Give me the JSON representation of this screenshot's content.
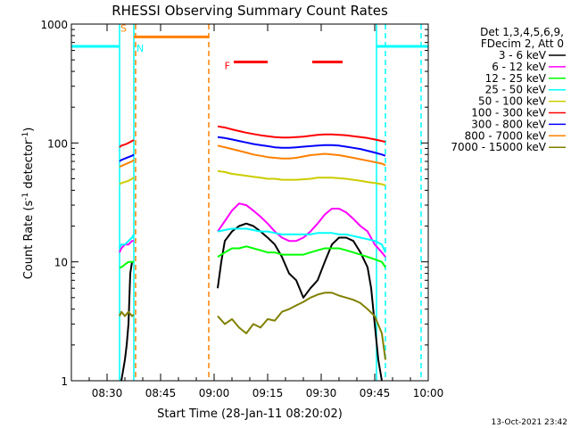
{
  "chart_data": {
    "type": "line",
    "title": "RHESSI Observing Summary Count Rates",
    "xlabel": "Start Time (28-Jan-11 08:20:02)",
    "ylabel_main": "Count Rate (s",
    "ylabel_sup1": "-1",
    "ylabel_mid": " detector",
    "ylabel_sup2": "-1",
    "ylabel_end": ")",
    "x_unit": "minutes since 08:20",
    "xlim": [
      0,
      100
    ],
    "ylim": [
      1,
      1000
    ],
    "y_scale": "log",
    "x_ticks": [
      {
        "value": 10,
        "label": "08:30"
      },
      {
        "value": 25,
        "label": "08:45"
      },
      {
        "value": 40,
        "label": "09:00"
      },
      {
        "value": 55,
        "label": "09:15"
      },
      {
        "value": 70,
        "label": "09:30"
      },
      {
        "value": 85,
        "label": "09:45"
      },
      {
        "value": 100,
        "label": "10:00"
      }
    ],
    "y_ticks": [
      {
        "value": 1,
        "label": "1"
      },
      {
        "value": 10,
        "label": "10"
      },
      {
        "value": 100,
        "label": "100"
      },
      {
        "value": 1000,
        "label": "1000"
      }
    ],
    "legend_header": [
      "Det 1,3,4,5,6,9,",
      "FDecim 2, Att 0"
    ],
    "series": [
      {
        "name": "3 - 6 keV",
        "color": "#000000",
        "segments": [
          {
            "x": [
              14,
              15,
              15.5,
              16,
              16.5,
              17
            ],
            "y": [
              1,
              1.5,
              2,
              3,
              8,
              10
            ]
          },
          {
            "x": [
              41,
              42,
              43,
              45,
              47,
              49,
              51,
              53,
              55,
              57,
              59,
              61,
              63,
              65,
              67,
              69,
              71,
              73,
              75,
              77,
              79,
              81,
              83,
              84,
              85,
              86,
              87
            ],
            "y": [
              6,
              10,
              15,
              18,
              20,
              21,
              20,
              18,
              16,
              14,
              11,
              8,
              7,
              5,
              6,
              7,
              10,
              14,
              16,
              16,
              15,
              12,
              9,
              6,
              3,
              1.5,
              1
            ]
          }
        ]
      },
      {
        "name": "6 - 12 keV",
        "color": "#ff00ff",
        "segments": [
          {
            "x": [
              13.5,
              14,
              15,
              16,
              17,
              17.5
            ],
            "y": [
              12,
              13,
              14,
              14,
              15,
              15
            ]
          },
          {
            "x": [
              41,
              43,
              45,
              47,
              49,
              51,
              53,
              55,
              57,
              59,
              61,
              63,
              65,
              67,
              69,
              71,
              73,
              75,
              77,
              79,
              81,
              83,
              85,
              87,
              88
            ],
            "y": [
              18,
              22,
              27,
              31,
              30,
              27,
              24,
              21,
              18,
              16,
              15,
              15,
              16,
              18,
              21,
              25,
              28,
              28,
              26,
              23,
              20,
              18,
              14,
              12,
              11
            ]
          }
        ]
      },
      {
        "name": "12 - 25 keV",
        "color": "#00ff00",
        "segments": [
          {
            "x": [
              13.5,
              14,
              15,
              16,
              17,
              17.5
            ],
            "y": [
              9,
              9,
              9.5,
              10,
              10,
              10
            ]
          },
          {
            "x": [
              41,
              43,
              45,
              47,
              49,
              51,
              53,
              55,
              57,
              59,
              61,
              63,
              65,
              67,
              69,
              71,
              73,
              75,
              77,
              79,
              81,
              83,
              85,
              87,
              88
            ],
            "y": [
              11,
              12,
              13,
              13,
              13.5,
              13,
              12.5,
              12,
              12,
              11.5,
              11.5,
              11.5,
              11.5,
              12,
              12.5,
              13,
              13,
              13,
              12.5,
              12,
              11.5,
              11,
              10.5,
              10,
              9
            ]
          }
        ]
      },
      {
        "name": "25 - 50 keV",
        "color": "#00ffff",
        "segments": [
          {
            "x": [
              13.5,
              14,
              15,
              16,
              17,
              17.5
            ],
            "y": [
              13,
              14,
              14,
              15,
              16,
              17
            ]
          },
          {
            "x": [
              41,
              43,
              45,
              47,
              49,
              51,
              53,
              55,
              57,
              59,
              61,
              63,
              65,
              67,
              69,
              71,
              73,
              75,
              77,
              79,
              81,
              83,
              85,
              87,
              88
            ],
            "y": [
              18,
              18.5,
              19,
              19,
              19,
              18.5,
              18,
              18,
              17.5,
              17,
              17,
              17,
              17,
              17,
              17.5,
              17.5,
              17.5,
              17,
              17,
              16.5,
              16,
              15.5,
              15,
              14,
              12
            ]
          }
        ]
      },
      {
        "name": "50 - 100 keV",
        "color": "#cccc00",
        "segments": [
          {
            "x": [
              13.5,
              14,
              15,
              16,
              17,
              17.5
            ],
            "y": [
              45,
              46,
              47,
              48,
              50,
              51
            ]
          },
          {
            "x": [
              41,
              43,
              45,
              47,
              49,
              51,
              53,
              55,
              57,
              59,
              61,
              63,
              65,
              67,
              69,
              71,
              73,
              75,
              77,
              79,
              81,
              83,
              85,
              87,
              88
            ],
            "y": [
              58,
              57,
              55,
              54,
              53,
              52,
              51,
              50,
              50,
              49,
              49,
              49,
              49.5,
              50,
              51,
              51,
              51,
              50.5,
              50,
              49,
              48,
              47,
              46,
              45,
              44
            ]
          }
        ]
      },
      {
        "name": "100 - 300 keV",
        "color": "#ff0000",
        "segments": [
          {
            "x": [
              13.5,
              14,
              15,
              16,
              17,
              17.5
            ],
            "y": [
              92,
              95,
              97,
              100,
              104,
              106
            ]
          },
          {
            "x": [
              41,
              43,
              45,
              47,
              49,
              51,
              53,
              55,
              57,
              59,
              61,
              63,
              65,
              67,
              69,
              71,
              73,
              75,
              77,
              79,
              81,
              83,
              85,
              87,
              88
            ],
            "y": [
              138,
              135,
              130,
              126,
              122,
              119,
              116,
              114,
              112,
              111,
              111,
              112,
              113,
              115,
              117,
              118,
              118,
              117,
              116,
              114,
              112,
              110,
              107,
              104,
              102
            ]
          }
        ]
      },
      {
        "name": "300 - 800 keV",
        "color": "#0000ff",
        "segments": [
          {
            "x": [
              13.5,
              14,
              15,
              16,
              17,
              17.5
            ],
            "y": [
              70,
              72,
              74,
              76,
              78,
              80
            ]
          },
          {
            "x": [
              41,
              43,
              45,
              47,
              49,
              51,
              53,
              55,
              57,
              59,
              61,
              63,
              65,
              67,
              69,
              71,
              73,
              75,
              77,
              79,
              81,
              83,
              85,
              87,
              88
            ],
            "y": [
              112,
              110,
              107,
              104,
              101,
              98,
              96,
              94,
              92,
              91,
              91,
              92,
              93,
              94,
              95,
              96,
              96,
              95,
              93,
              91,
              89,
              86,
              83,
              80,
              78
            ]
          }
        ]
      },
      {
        "name": "800 - 7000 keV",
        "color": "#ff8000",
        "segments": [
          {
            "x": [
              13.5,
              14,
              15,
              16,
              17,
              17.5
            ],
            "y": [
              63,
              64,
              66,
              68,
              70,
              72
            ]
          },
          {
            "x": [
              41,
              43,
              45,
              47,
              49,
              51,
              53,
              55,
              57,
              59,
              61,
              63,
              65,
              67,
              69,
              71,
              73,
              75,
              77,
              79,
              81,
              83,
              85,
              87,
              88
            ],
            "y": [
              95,
              92,
              89,
              86,
              83,
              80,
              78,
              76,
              75,
              74,
              74,
              75,
              77,
              79,
              80,
              81,
              80,
              79,
              77,
              75,
              73,
              71,
              69,
              67,
              65
            ]
          }
        ]
      },
      {
        "name": "7000 - 15000 keV",
        "color": "#808000",
        "segments": [
          {
            "x": [
              13.5,
              14,
              15,
              16,
              17,
              17.5
            ],
            "y": [
              3.5,
              3.8,
              3.5,
              3.8,
              3.5,
              3.6
            ]
          },
          {
            "x": [
              41,
              43,
              45,
              47,
              49,
              51,
              53,
              55,
              57,
              59,
              61,
              63,
              65,
              67,
              69,
              71,
              73,
              75,
              77,
              79,
              81,
              83,
              85,
              87,
              88
            ],
            "y": [
              3.5,
              3.0,
              3.3,
              2.8,
              2.5,
              3.0,
              2.8,
              3.3,
              3.2,
              3.8,
              4.0,
              4.3,
              4.6,
              5.0,
              5.3,
              5.5,
              5.5,
              5.2,
              5.0,
              4.8,
              4.5,
              4.0,
              3.5,
              2.5,
              1.5
            ]
          }
        ]
      }
    ],
    "flag_bands": [
      {
        "label": "",
        "color": "#00ffff",
        "x0": 0,
        "x1": 13.5,
        "level": 650
      },
      {
        "label": "N",
        "color": "#00ffff",
        "x0": 17.5,
        "x1": 17.6,
        "level": 650
      },
      {
        "label": "S",
        "color": "#ff8000",
        "x0": 17.5,
        "x1": 38.5,
        "level": 780
      },
      {
        "label": "F",
        "color": "#ff0000",
        "x0": 45.5,
        "x1": 55,
        "level": 480
      },
      {
        "label": "",
        "color": "#ff0000",
        "x0": 67.5,
        "x1": 76,
        "level": 480
      },
      {
        "label": "",
        "color": "#00ffff",
        "x0": 85.5,
        "x1": 100,
        "level": 650
      }
    ],
    "vlines": [
      {
        "x": 13.5,
        "color": "#00ffff",
        "style": "solid"
      },
      {
        "x": 17.5,
        "color": "#00ffff",
        "style": "solid"
      },
      {
        "x": 18,
        "color": "#ff8000",
        "style": "dashed"
      },
      {
        "x": 38.5,
        "color": "#ff8000",
        "style": "dashed"
      },
      {
        "x": 85.5,
        "color": "#00ffff",
        "style": "solid"
      },
      {
        "x": 88,
        "color": "#00ffff",
        "style": "dashed"
      },
      {
        "x": 98,
        "color": "#00ffff",
        "style": "dashed"
      }
    ],
    "footer_date": "13-Oct-2021 23:42"
  }
}
